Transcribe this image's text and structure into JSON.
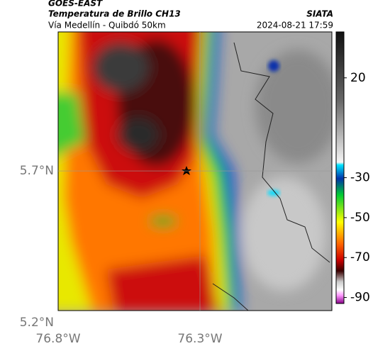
{
  "header": {
    "satellite": "GOES-EAST",
    "product": "Temperatura de Brillo CH13",
    "route": "Vía Medellín - Quibdó 50km",
    "source": "SIATA",
    "timestamp": "2024-08-21 17:59"
  },
  "map": {
    "xlim": [
      -76.8,
      -75.835
    ],
    "ylim": [
      5.24,
      6.158
    ],
    "xticks": [
      {
        "value": -76.8,
        "label": "76.8°W"
      },
      {
        "value": -76.3,
        "label": "76.3°W"
      }
    ],
    "yticks": [
      {
        "value": 5.7,
        "label": "5.7°N"
      },
      {
        "value": 5.2,
        "label": "5.2°N"
      }
    ],
    "colorbar": {
      "lim": [
        -93,
        43
      ],
      "ticks": [
        20,
        -30,
        -50,
        -70,
        -90
      ]
    }
  }
}
